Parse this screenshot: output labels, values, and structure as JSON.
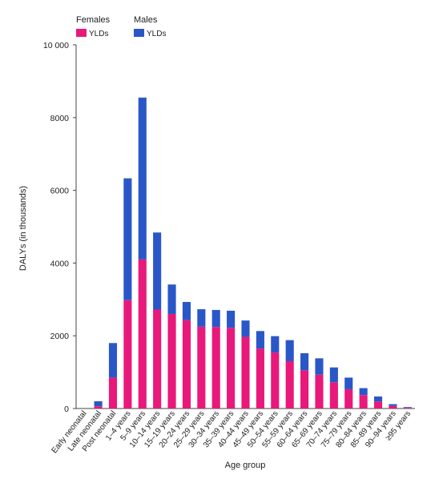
{
  "chart_data": {
    "type": "bar",
    "stacked": true,
    "legend": {
      "placement": "top-left",
      "groups": [
        {
          "title": "Females",
          "label": "YLDs",
          "color": "#e8197b"
        },
        {
          "title": "Males",
          "label": "YLDs",
          "color": "#2a57c8"
        }
      ]
    },
    "ylabel": "DALYs (in thousands)",
    "xlabel": "Age group",
    "ylim": [
      0,
      10000
    ],
    "yticks": [
      {
        "value": 0,
        "label": "0"
      },
      {
        "value": 2000,
        "label": "2000"
      },
      {
        "value": 4000,
        "label": "4000"
      },
      {
        "value": 6000,
        "label": "6000"
      },
      {
        "value": 8000,
        "label": "8000"
      },
      {
        "value": 10000,
        "label": "10 000"
      }
    ],
    "grid": false,
    "categories": [
      "Early neonatal",
      "Late neonatal",
      "Post neonatal",
      "1–4 years",
      "5–9 years",
      "10–14 years",
      "15–19 years",
      "20–24 years",
      "25–29 years",
      "30–34 years",
      "35–39 years",
      "40–44 years",
      "45–49 years",
      "50–54 years",
      "55–59 years",
      "60–64 years",
      "65–69 years",
      "70–74 years",
      "75–79 years",
      "80–84 years",
      "85–89 years",
      "90–94 years",
      "≥95 years"
    ],
    "series": [
      {
        "name": "Females YLDs",
        "color": "#e8197b",
        "values": [
          0,
          60,
          850,
          2980,
          4100,
          2720,
          2600,
          2430,
          2250,
          2240,
          2220,
          1970,
          1650,
          1540,
          1300,
          1050,
          930,
          720,
          530,
          370,
          190,
          70,
          20
        ]
      },
      {
        "name": "Males YLDs",
        "color": "#2a57c8",
        "values": [
          0,
          140,
          950,
          3350,
          4450,
          2120,
          810,
          500,
          480,
          470,
          470,
          450,
          480,
          450,
          580,
          470,
          450,
          410,
          320,
          190,
          140,
          50,
          20
        ]
      }
    ]
  }
}
